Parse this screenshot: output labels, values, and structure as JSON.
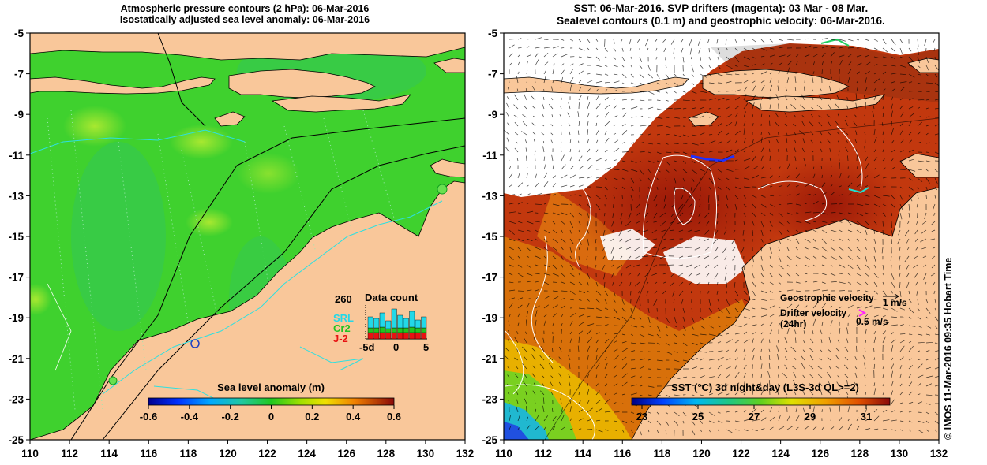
{
  "left_panel": {
    "title_line1": "Atmospheric pressure contours (2 hPa): 06-Mar-2016",
    "title_line2": "Isostatically adjusted sea level anomaly: 06-Mar-2016",
    "colorbar": {
      "label": "Sea level anomaly (m)",
      "ticks": [
        "-0.6",
        "-0.4",
        "-0.2",
        "0",
        "0.2",
        "0.4",
        "0.6"
      ]
    },
    "inset": {
      "title": "Data count",
      "max_label": "260",
      "axis_ticks": [
        "-5d",
        "0",
        "5"
      ],
      "satellites": [
        {
          "name": "SRL",
          "color": "#22d8e8"
        },
        {
          "name": "Cr2",
          "color": "#22c422"
        },
        {
          "name": "J-2",
          "color": "#e81212"
        }
      ]
    }
  },
  "right_panel": {
    "title_line1": "SST: 06-Mar-2016. SVP drifters (magenta): 03 Mar - 08 Mar.",
    "title_line2": "Sealevel contours (0.1 m) and geostrophic velocity: 06-Mar-2016.",
    "colorbar": {
      "label": "SST (°C) 3d night&day (L3S-3d QL>=2)",
      "ticks": [
        "23",
        "25",
        "27",
        "29",
        "31"
      ]
    },
    "legend": {
      "geostrophic_label": "Geostrophic velocity",
      "geostrophic_scale": "1 m/s",
      "drifter_label_line1": "Drifter velocity",
      "drifter_label_line2": "(24hr)",
      "drifter_scale": "0.5 m/s",
      "drifter_color": "#ff22ff"
    }
  },
  "axes": {
    "lat_ticks": [
      "-5",
      "-7",
      "-9",
      "-11",
      "-13",
      "-15",
      "-17",
      "-19",
      "-21",
      "-23",
      "-25"
    ],
    "lon_ticks": [
      "110",
      "112",
      "114",
      "116",
      "118",
      "120",
      "122",
      "124",
      "126",
      "128",
      "130",
      "132"
    ]
  },
  "credit": "© IMOS 11-Mar-2016 09:35 Hobart Time",
  "colors": {
    "land": "#f9c79a",
    "ocean_green": "#3fd12e",
    "sst_warm": "#c2380e",
    "cloud": "#ffffff"
  }
}
